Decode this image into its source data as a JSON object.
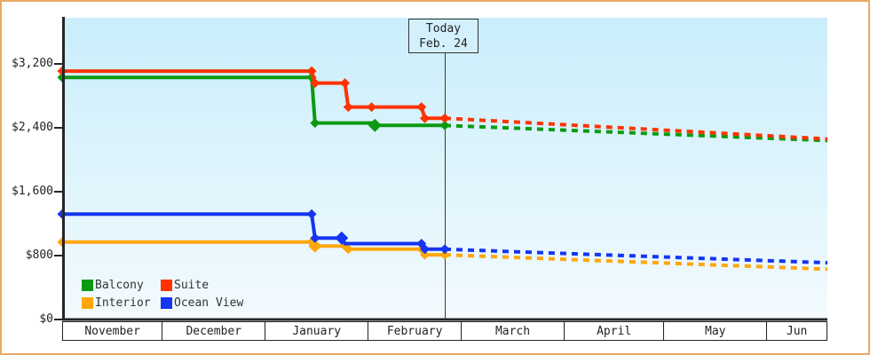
{
  "chart_data": {
    "type": "line",
    "description": "Cruise cabin price history by category with forecast after today",
    "y_axis": {
      "ticks": [
        {
          "label": "$0",
          "value": 0
        },
        {
          "label": "$800",
          "value": 800
        },
        {
          "label": "$1,600",
          "value": 1600
        },
        {
          "label": "$2,400",
          "value": 2400
        },
        {
          "label": "$3,200",
          "value": 3200
        }
      ],
      "range": [
        0,
        3200
      ],
      "grid": "off"
    },
    "x_axis": {
      "total_days": 230,
      "start_month": "November",
      "months": [
        {
          "label": "November",
          "days": 30
        },
        {
          "label": "December",
          "days": 31
        },
        {
          "label": "January",
          "days": 31
        },
        {
          "label": "February",
          "days": 28
        },
        {
          "label": "March",
          "days": 31
        },
        {
          "label": "April",
          "days": 30
        },
        {
          "label": "May",
          "days": 31
        },
        {
          "label": "Jun",
          "days": 18
        }
      ]
    },
    "today": {
      "line1": "Today",
      "line2": "Feb. 24",
      "day": 115
    },
    "series": [
      {
        "name": "Balcony",
        "color": "#0c9a12",
        "history": [
          [
            0,
            3030
          ],
          [
            75,
            3030
          ],
          [
            76,
            2460
          ],
          [
            93,
            2460
          ],
          [
            94,
            2430
          ],
          [
            115,
            2430
          ]
        ],
        "forecast": [
          [
            115,
            2430
          ],
          [
            230,
            2240
          ]
        ],
        "marker_days": [
          0,
          75,
          76,
          94,
          115
        ],
        "big_marker_days": [
          94
        ]
      },
      {
        "name": "Suite",
        "color": "#ff3300",
        "history": [
          [
            0,
            3110
          ],
          [
            75,
            3110
          ],
          [
            76,
            2960
          ],
          [
            85,
            2960
          ],
          [
            86,
            2660
          ],
          [
            93,
            2660
          ],
          [
            108,
            2660
          ],
          [
            109,
            2520
          ],
          [
            115,
            2520
          ]
        ],
        "forecast": [
          [
            115,
            2520
          ],
          [
            230,
            2260
          ]
        ],
        "marker_days": [
          0,
          75,
          76,
          85,
          86,
          93,
          108,
          109,
          115
        ],
        "big_marker_days": []
      },
      {
        "name": "Interior",
        "color": "#ffa60a",
        "history": [
          [
            0,
            970
          ],
          [
            75,
            970
          ],
          [
            76,
            920
          ],
          [
            85,
            920
          ],
          [
            86,
            880
          ],
          [
            108,
            880
          ],
          [
            109,
            810
          ],
          [
            115,
            810
          ]
        ],
        "forecast": [
          [
            115,
            810
          ],
          [
            230,
            630
          ]
        ],
        "marker_days": [
          0,
          75,
          76,
          85,
          86,
          108,
          109,
          115
        ],
        "big_marker_days": [
          76
        ]
      },
      {
        "name": "Ocean View",
        "color": "#1535f0",
        "history": [
          [
            0,
            1320
          ],
          [
            75,
            1320
          ],
          [
            76,
            1020
          ],
          [
            84,
            1020
          ],
          [
            85,
            950
          ],
          [
            108,
            950
          ],
          [
            109,
            880
          ],
          [
            115,
            880
          ]
        ],
        "forecast": [
          [
            115,
            880
          ],
          [
            230,
            710
          ]
        ],
        "marker_days": [
          0,
          75,
          76,
          84,
          108,
          109,
          115
        ],
        "big_marker_days": [
          84
        ]
      }
    ],
    "legend": [
      {
        "label": "Balcony",
        "color": "#0c9a12"
      },
      {
        "label": "Suite",
        "color": "#ff3300"
      },
      {
        "label": "Interior",
        "color": "#ffa60a"
      },
      {
        "label": "Ocean View",
        "color": "#1535f0"
      }
    ],
    "legend_position": "bottom-left-inside"
  }
}
